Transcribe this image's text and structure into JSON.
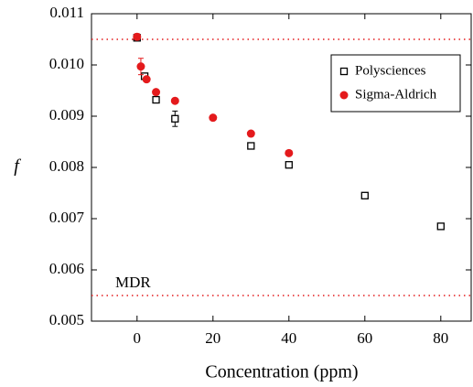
{
  "chart_data": {
    "type": "scatter",
    "x_label": "Concentration (ppm)",
    "y_label": "f",
    "xlim": [
      -12,
      88
    ],
    "xticks": [
      0,
      20,
      40,
      60,
      80
    ],
    "ylim": [
      0.005,
      0.011
    ],
    "yticks": [
      0.005,
      0.006,
      0.007,
      0.008,
      0.009,
      {
        "value": 0.01,
        "label": "0.010"
      },
      0.011
    ],
    "reference_lines": [
      {
        "value": 0.0105,
        "color": "#e41a1c"
      },
      {
        "value": 0.0055,
        "color": "#e41a1c",
        "label": "MDR"
      }
    ],
    "legend": "upper right",
    "series": [
      {
        "name": "Polysciences",
        "color": "#000000",
        "marker": "open-square",
        "x": [
          0,
          2,
          5,
          10,
          30,
          40,
          60,
          80
        ],
        "values": [
          0.01053,
          0.00978,
          0.00932,
          0.00895,
          0.00842,
          0.00805,
          0.00745,
          0.00685
        ],
        "errors": [
          null,
          4e-05,
          null,
          0.00015,
          null,
          null,
          null,
          null
        ]
      },
      {
        "name": "Sigma-Aldrich",
        "color": "#e41a1c",
        "marker": "filled-circle",
        "x": [
          0,
          1,
          2.5,
          5,
          10,
          20,
          30,
          40
        ],
        "values": [
          0.01055,
          0.00997,
          0.00972,
          0.00947,
          0.0093,
          0.00897,
          0.00866,
          0.00828
        ],
        "errors": [
          6e-05,
          0.00016,
          null,
          null,
          null,
          null,
          null,
          null
        ]
      }
    ]
  }
}
